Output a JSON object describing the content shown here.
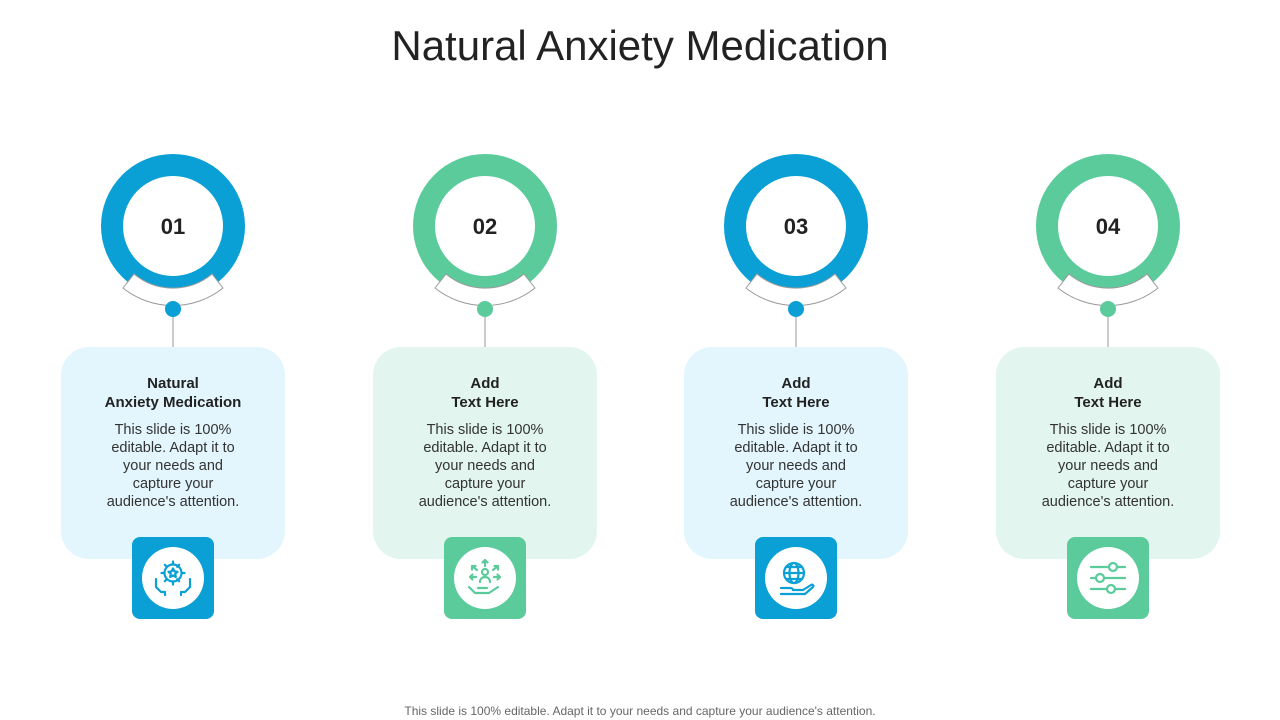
{
  "title": "Natural Anxiety Medication",
  "colors": {
    "blue": "#0aa0d6",
    "green": "#5ccb9c",
    "blue_light": "#e3f6fd",
    "green_light": "#e2f5ee"
  },
  "steps": [
    {
      "number": "01",
      "heading": "Natural\nAnxiety Medication",
      "body": "This slide is 100% editable. Adapt it to your needs and capture your audience's attention.",
      "theme": "blue",
      "icon": "hands-gear-star-icon"
    },
    {
      "number": "02",
      "heading": "Add\nText Here",
      "body": "This slide is 100% editable. Adapt it to your needs and capture your audience's attention.",
      "theme": "green",
      "icon": "hand-person-arrows-icon"
    },
    {
      "number": "03",
      "heading": "Add\nText Here",
      "body": "This slide is 100% editable. Adapt it to your needs and capture your audience's attention.",
      "theme": "blue",
      "icon": "hand-globe-icon"
    },
    {
      "number": "04",
      "heading": "Add\nText Here",
      "body": "This slide is 100% editable. Adapt it to your needs and capture your audience's attention.",
      "theme": "green",
      "icon": "sliders-icon"
    }
  ],
  "footer": "This slide is 100% editable. Adapt it to your needs and capture your audience's attention."
}
